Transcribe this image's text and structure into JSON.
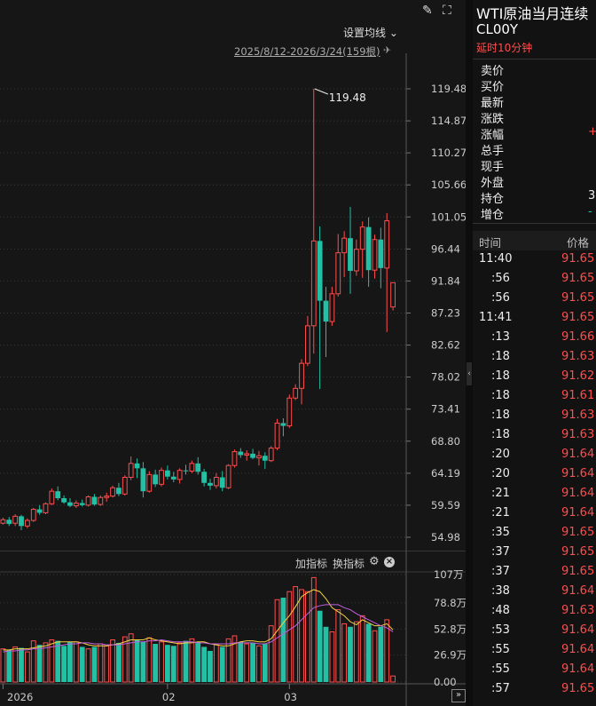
{
  "toolbar": {
    "ma_settings": "设置均线",
    "ma_chevron": "⌄",
    "range_label": "2025/8/12-2026/3/24(159根)",
    "draw_icon": "✎",
    "fullscreen_icon": "⛶",
    "pin_icon": "✈"
  },
  "indicator_bar": {
    "add": "加指标",
    "swap": "换指标",
    "gear": "⚙",
    "close": "×"
  },
  "nav": {
    "next": "»",
    "collapse": "‹"
  },
  "symbol": {
    "name": "WTI原油当月连续",
    "code": "CL00Y",
    "delay": "延时10分钟"
  },
  "quote": {
    "labels": [
      "卖价",
      "买价",
      "最新",
      "涨跌",
      "涨幅",
      "总手",
      "现手",
      "外盘",
      "持仓",
      "增仓"
    ],
    "partial_values": [
      {
        "row": 4,
        "text": "+",
        "color": "#ff4d4d"
      },
      {
        "row": 8,
        "text": "3",
        "color": "#eeeeee"
      },
      {
        "row": 9,
        "text": "-",
        "color": "#22c0a5"
      }
    ]
  },
  "ticks": {
    "header": {
      "time": "时间",
      "price": "价格"
    },
    "rows": [
      {
        "time": "11:40",
        "price": "91.65"
      },
      {
        "time": ":56",
        "price": "91.65"
      },
      {
        "time": ":56",
        "price": "91.65"
      },
      {
        "time": "11:41",
        "price": "91.65"
      },
      {
        "time": ":13",
        "price": "91.66"
      },
      {
        "time": ":18",
        "price": "91.63"
      },
      {
        "time": ":18",
        "price": "91.62"
      },
      {
        "time": ":18",
        "price": "91.61"
      },
      {
        "time": ":18",
        "price": "91.63"
      },
      {
        "time": ":18",
        "price": "91.63"
      },
      {
        "time": ":20",
        "price": "91.64"
      },
      {
        "time": ":20",
        "price": "91.64"
      },
      {
        "time": ":21",
        "price": "91.64"
      },
      {
        "time": ":21",
        "price": "91.64"
      },
      {
        "time": ":35",
        "price": "91.65"
      },
      {
        "time": ":37",
        "price": "91.65"
      },
      {
        "time": ":37",
        "price": "91.65"
      },
      {
        "time": ":38",
        "price": "91.64"
      },
      {
        "time": ":48",
        "price": "91.63"
      },
      {
        "time": ":53",
        "price": "91.64"
      },
      {
        "time": ":55",
        "price": "91.64"
      },
      {
        "time": ":55",
        "price": "91.64"
      },
      {
        "time": ":57",
        "price": "91.65"
      }
    ]
  },
  "chart_data": [
    {
      "type": "candlestick",
      "ylim": [
        54.98,
        119.48
      ],
      "price_ticks": [
        "119.48",
        "114.87",
        "110.27",
        "105.66",
        "101.05",
        "96.44",
        "91.84",
        "87.23",
        "82.62",
        "78.02",
        "73.41",
        "68.80",
        "64.19",
        "59.59",
        "54.98"
      ],
      "annotation": "119.48",
      "x_labels": [
        {
          "label": "2026",
          "index": 0
        },
        {
          "label": "02",
          "index": 27
        },
        {
          "label": "03",
          "index": 47
        }
      ],
      "colors": {
        "up": "#ff4d4d",
        "down": "#22c0a5"
      },
      "candles": [
        [
          57.0,
          57.8,
          56.8,
          57.5
        ],
        [
          57.5,
          57.9,
          56.6,
          56.9
        ],
        [
          57.0,
          58.3,
          56.6,
          58.0
        ],
        [
          58.0,
          58.2,
          56.0,
          56.6
        ],
        [
          56.6,
          57.7,
          56.3,
          57.4
        ],
        [
          57.4,
          59.2,
          57.2,
          59.0
        ],
        [
          59.0,
          59.6,
          58.2,
          58.5
        ],
        [
          58.5,
          60.0,
          58.3,
          59.8
        ],
        [
          59.8,
          62.0,
          59.6,
          61.6
        ],
        [
          61.6,
          62.3,
          60.3,
          60.6
        ],
        [
          60.6,
          61.0,
          59.8,
          60.0
        ],
        [
          60.0,
          60.6,
          59.3,
          59.5
        ],
        [
          59.5,
          60.3,
          59.2,
          59.9
        ],
        [
          59.9,
          60.4,
          59.4,
          59.6
        ],
        [
          59.6,
          61.0,
          59.4,
          60.8
        ],
        [
          60.8,
          61.2,
          59.5,
          59.7
        ],
        [
          59.7,
          61.0,
          59.5,
          60.7
        ],
        [
          60.7,
          61.4,
          60.1,
          60.9
        ],
        [
          60.9,
          62.4,
          60.7,
          62.1
        ],
        [
          62.1,
          62.8,
          60.9,
          61.2
        ],
        [
          61.2,
          63.9,
          61.0,
          63.6
        ],
        [
          63.6,
          66.6,
          63.2,
          65.6
        ],
        [
          65.6,
          66.3,
          63.5,
          64.9
        ],
        [
          64.9,
          65.8,
          60.7,
          61.6
        ],
        [
          61.6,
          64.5,
          61.4,
          64.0
        ],
        [
          64.0,
          64.7,
          62.2,
          62.6
        ],
        [
          62.6,
          65.0,
          62.3,
          64.6
        ],
        [
          64.6,
          65.3,
          63.3,
          63.7
        ],
        [
          63.7,
          64.4,
          62.9,
          63.3
        ],
        [
          63.3,
          64.9,
          62.7,
          64.6
        ],
        [
          64.6,
          65.4,
          64.0,
          64.5
        ],
        [
          64.5,
          66.0,
          64.2,
          65.6
        ],
        [
          65.6,
          66.5,
          64.0,
          64.4
        ],
        [
          64.4,
          64.8,
          62.3,
          62.8
        ],
        [
          62.8,
          63.4,
          61.8,
          62.4
        ],
        [
          62.4,
          64.2,
          62.0,
          63.6
        ],
        [
          63.6,
          64.5,
          61.6,
          62.1
        ],
        [
          62.1,
          65.5,
          61.9,
          65.3
        ],
        [
          65.3,
          67.6,
          65.0,
          67.3
        ],
        [
          67.3,
          67.8,
          66.4,
          66.8
        ],
        [
          66.8,
          67.5,
          66.0,
          67.0
        ],
        [
          67.0,
          67.7,
          66.2,
          66.4
        ],
        [
          66.4,
          67.4,
          65.3,
          66.7
        ],
        [
          66.7,
          67.2,
          64.8,
          66.0
        ],
        [
          66.0,
          68.1,
          65.8,
          67.8
        ],
        [
          67.8,
          72.0,
          67.5,
          71.4
        ],
        [
          71.4,
          72.1,
          69.5,
          71.0
        ],
        [
          71.0,
          75.5,
          70.7,
          75.0
        ],
        [
          75.0,
          77.0,
          74.7,
          76.4
        ],
        [
          76.4,
          80.6,
          74.1,
          80.0
        ],
        [
          80.0,
          86.8,
          79.6,
          85.4
        ],
        [
          85.4,
          119.48,
          81.4,
          97.6
        ],
        [
          97.6,
          99.7,
          76.3,
          89.0
        ],
        [
          89.0,
          91.0,
          80.9,
          86.0
        ],
        [
          86.0,
          91.0,
          85.4,
          90.0
        ],
        [
          90.0,
          98.6,
          89.6,
          95.9
        ],
        [
          95.9,
          99.0,
          92.4,
          98.0
        ],
        [
          98.0,
          102.5,
          90.0,
          93.3
        ],
        [
          93.3,
          97.8,
          92.6,
          96.4
        ],
        [
          96.4,
          100.4,
          92.3,
          99.6
        ],
        [
          99.6,
          101.0,
          91.0,
          93.4
        ],
        [
          93.4,
          98.5,
          92.2,
          97.8
        ],
        [
          97.8,
          99.5,
          90.8,
          93.7
        ],
        [
          93.7,
          101.6,
          84.5,
          100.5
        ],
        [
          88.1,
          91.6,
          87.6,
          91.6
        ]
      ]
    },
    {
      "type": "bar",
      "unit": "万",
      "ylim": [
        0,
        107
      ],
      "volume_ticks": [
        "107万",
        "78.8万",
        "52.8万",
        "26.9万",
        "0.00"
      ],
      "series": [
        {
          "name": "VOL",
          "values": [
            33,
            32,
            35,
            34,
            30,
            41,
            37,
            39,
            42,
            41,
            36,
            40,
            40,
            35,
            33,
            35,
            38,
            36,
            42,
            39,
            45,
            48,
            42,
            40,
            44,
            38,
            40,
            37,
            36,
            39,
            41,
            43,
            40,
            35,
            31,
            37,
            35,
            43,
            46,
            40,
            38,
            39,
            36,
            38,
            56,
            82,
            84,
            90,
            95,
            92,
            90,
            104,
            71,
            55,
            50,
            72,
            58,
            55,
            60,
            66,
            58,
            51,
            55,
            62,
            6
          ]
        },
        {
          "name": "MA5",
          "values": [
            32,
            32,
            33,
            33,
            33,
            34,
            35,
            36,
            38,
            40,
            40,
            40,
            40,
            39,
            37,
            36,
            36,
            36,
            37,
            38,
            40,
            42,
            42,
            42,
            44,
            42,
            41,
            40,
            39,
            38,
            39,
            39,
            40,
            40,
            38,
            37,
            36,
            36,
            38,
            40,
            41,
            41,
            40,
            40,
            43,
            51,
            59,
            66,
            75,
            85,
            89,
            92,
            90,
            83,
            74,
            70,
            66,
            60,
            57,
            62,
            59,
            56,
            56,
            58,
            52
          ]
        },
        {
          "name": "MA10",
          "values": [
            30,
            31,
            31,
            32,
            32,
            33,
            33,
            34,
            35,
            36,
            37,
            38,
            38,
            39,
            39,
            38,
            38,
            37,
            37,
            37,
            38,
            39,
            40,
            40,
            41,
            41,
            42,
            41,
            40,
            40,
            40,
            40,
            39,
            39,
            38,
            38,
            38,
            38,
            39,
            39,
            39,
            39,
            38,
            38,
            40,
            44,
            48,
            52,
            56,
            62,
            68,
            74,
            76,
            77,
            77,
            77,
            74,
            72,
            68,
            65,
            62,
            59,
            56,
            54,
            50
          ]
        }
      ]
    }
  ]
}
